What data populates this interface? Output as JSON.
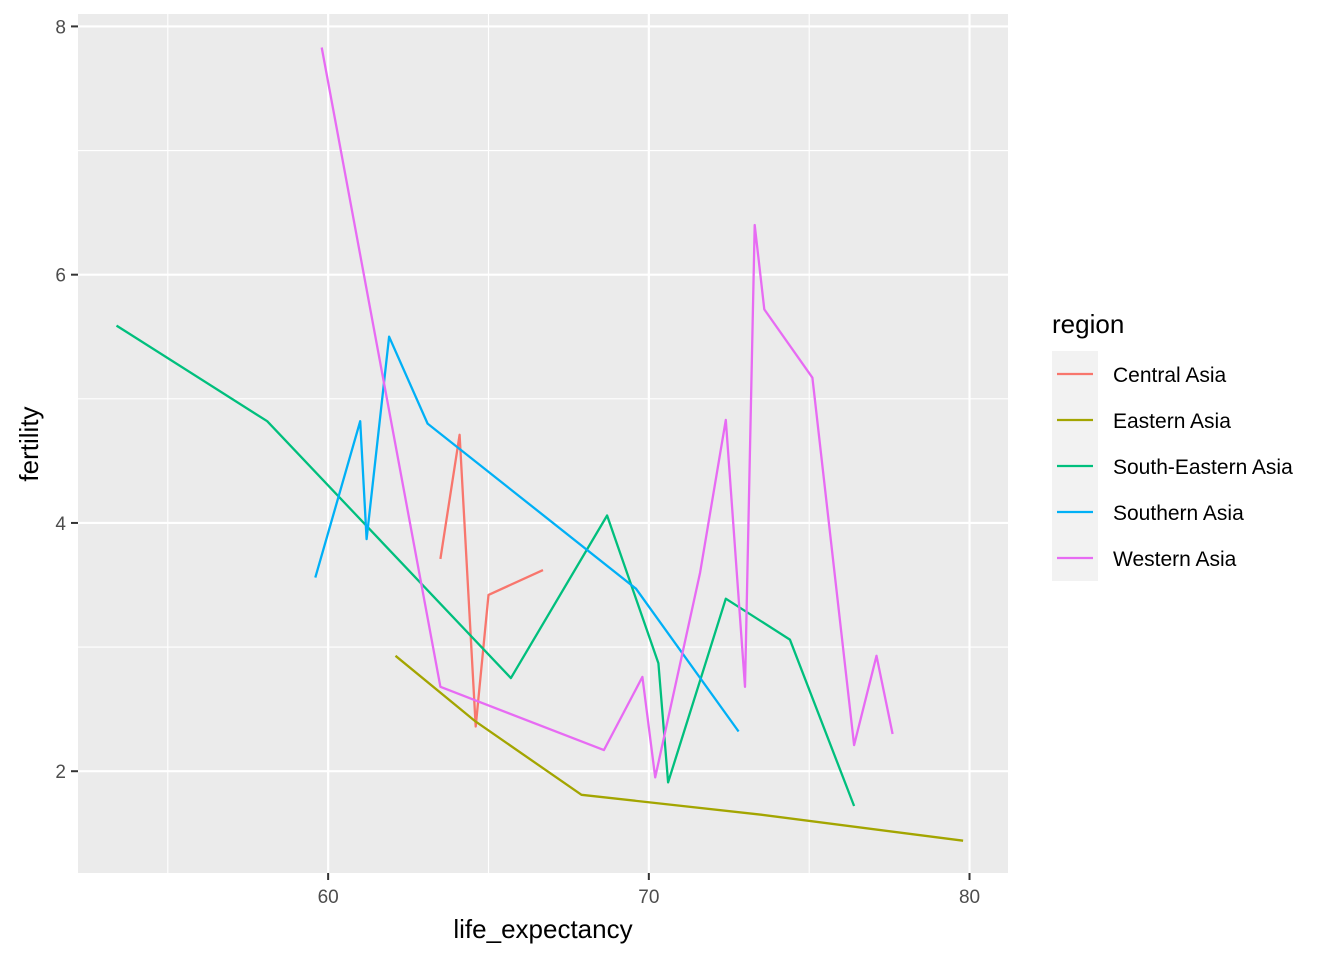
{
  "chart_data": {
    "type": "line",
    "title": "",
    "xlabel": "life_expectancy",
    "ylabel": "fertility",
    "xlim": [
      52.2,
      81.2
    ],
    "ylim": [
      1.18,
      8.1
    ],
    "x_ticks": [
      60,
      70,
      80
    ],
    "x_tick_labels": [
      "60",
      "70",
      "80"
    ],
    "x_minor_ticks": [
      55,
      65,
      75
    ],
    "y_ticks": [
      2,
      4,
      6,
      8
    ],
    "y_tick_labels": [
      "2",
      "4",
      "6",
      "8"
    ],
    "y_minor_ticks": [
      3,
      5,
      7
    ],
    "grid": true,
    "panel_background": "#ebebeb",
    "grid_color": "#ffffff",
    "legend": {
      "title": "region",
      "position": "right"
    },
    "series": [
      {
        "name": "Central Asia",
        "color": "#F8766D",
        "points": [
          [
            63.5,
            3.71
          ],
          [
            64.1,
            4.71
          ],
          [
            64.6,
            2.36
          ],
          [
            65.0,
            3.42
          ],
          [
            66.7,
            3.62
          ]
        ]
      },
      {
        "name": "Eastern Asia",
        "color": "#A3A500",
        "points": [
          [
            62.1,
            2.93
          ],
          [
            64.6,
            2.4
          ],
          [
            67.9,
            1.81
          ],
          [
            73.5,
            1.65
          ],
          [
            79.8,
            1.44
          ]
        ]
      },
      {
        "name": "South-Eastern Asia",
        "color": "#00BF7D",
        "points": [
          [
            53.4,
            5.59
          ],
          [
            58.1,
            4.82
          ],
          [
            65.7,
            2.75
          ],
          [
            68.7,
            4.06
          ],
          [
            70.3,
            2.87
          ],
          [
            70.6,
            1.91
          ],
          [
            72.4,
            3.39
          ],
          [
            74.4,
            3.06
          ],
          [
            76.4,
            1.72
          ]
        ]
      },
      {
        "name": "Southern Asia",
        "color": "#00B0F6",
        "points": [
          [
            59.6,
            3.56
          ],
          [
            61.0,
            4.82
          ],
          [
            61.2,
            3.87
          ],
          [
            61.9,
            5.5
          ],
          [
            63.1,
            4.8
          ],
          [
            69.6,
            3.47
          ],
          [
            72.8,
            2.32
          ]
        ]
      },
      {
        "name": "Western Asia",
        "color": "#E76BF3",
        "points": [
          [
            59.8,
            7.83
          ],
          [
            63.5,
            2.68
          ],
          [
            68.6,
            2.17
          ],
          [
            69.8,
            2.76
          ],
          [
            70.2,
            1.95
          ],
          [
            71.6,
            3.6
          ],
          [
            72.4,
            4.83
          ],
          [
            73.0,
            2.68
          ],
          [
            73.3,
            6.4
          ],
          [
            73.6,
            5.72
          ],
          [
            75.1,
            5.17
          ],
          [
            76.4,
            2.21
          ],
          [
            77.1,
            2.93
          ],
          [
            77.6,
            2.3
          ]
        ]
      }
    ]
  }
}
